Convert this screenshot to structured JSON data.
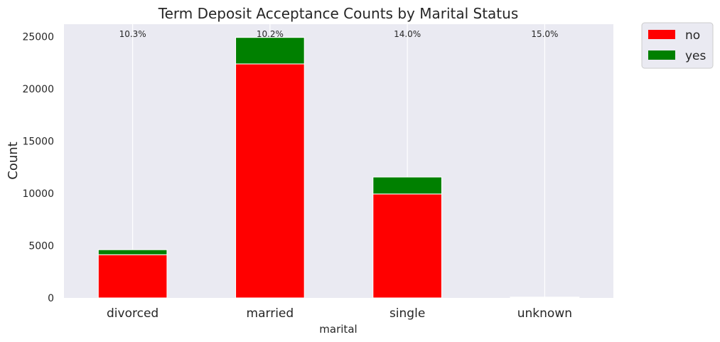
{
  "chart_data": {
    "type": "bar",
    "stacked": true,
    "title": "Term Deposit Acceptance Counts by Marital Status",
    "xlabel": "marital",
    "ylabel": "Count",
    "categories": [
      "divorced",
      "married",
      "single",
      "unknown"
    ],
    "series": [
      {
        "name": "no",
        "color": "#ff0000",
        "values": [
          4136,
          22396,
          9948,
          68
        ]
      },
      {
        "name": "yes",
        "color": "#008000",
        "values": [
          476,
          2532,
          1620,
          12
        ]
      }
    ],
    "percent_labels": [
      "10.3%",
      "10.2%",
      "14.0%",
      "15.0%"
    ],
    "ylim": [
      0,
      26200
    ],
    "yticks": [
      0,
      5000,
      10000,
      15000,
      20000,
      25000
    ],
    "grid": true,
    "legend_position": "outside-top-right",
    "background": "#eaeaf2"
  }
}
